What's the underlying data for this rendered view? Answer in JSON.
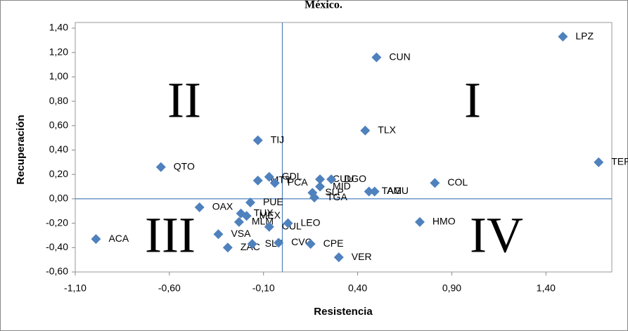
{
  "chart_data": {
    "type": "scatter",
    "title": "México.",
    "x_label": "Resistencia",
    "y_label": "Recuperación",
    "color": "#4f81bd",
    "xlim": [
      -1.1,
      1.75
    ],
    "ylim": [
      -0.6,
      1.4
    ],
    "xticks": [
      {
        "value": -1.1,
        "label": "-1,10"
      },
      {
        "value": -0.6,
        "label": "-0,60"
      },
      {
        "value": -0.1,
        "label": "-0,10"
      },
      {
        "value": 0.4,
        "label": "0,40"
      },
      {
        "value": 0.9,
        "label": "0,90"
      },
      {
        "value": 1.4,
        "label": "1,40"
      }
    ],
    "yticks": [
      {
        "value": 1.4,
        "label": "1,40"
      },
      {
        "value": 1.2,
        "label": "1,20"
      },
      {
        "value": 1.0,
        "label": "1,00"
      },
      {
        "value": 0.8,
        "label": "0,80"
      },
      {
        "value": 0.6,
        "label": "0,60"
      },
      {
        "value": 0.4,
        "label": "0,40"
      },
      {
        "value": 0.2,
        "label": "0,20"
      },
      {
        "value": 0,
        "label": "0,00"
      },
      {
        "value": -0.2,
        "label": "-0,20"
      },
      {
        "value": -0.4,
        "label": "-0,40"
      },
      {
        "value": -0.6,
        "label": "-0,60"
      }
    ],
    "labels": [
      "LPZ",
      "CUN",
      "TLX",
      "TIJ",
      "QTO",
      "TEP",
      "ACA",
      "OAX",
      "PUE",
      "TUX",
      "MEX",
      "MLM",
      "VSA",
      "ZAC",
      "SLT",
      "CVC",
      "CPE",
      "CUL",
      "LEO",
      "VER",
      "HMO",
      "COL",
      "TAM",
      "AGU",
      "CUU",
      "DGO",
      "MID",
      "SLP",
      "TGA",
      "MTY",
      "GDL",
      "PCA"
    ],
    "x": [
      1.49,
      0.5,
      0.44,
      -0.13,
      -0.645,
      1.68,
      -0.99,
      -0.44,
      -0.17,
      -0.22,
      -0.19,
      -0.23,
      -0.34,
      -0.29,
      -0.16,
      -0.02,
      0.15,
      -0.07,
      0.03,
      0.3,
      0.73,
      0.81,
      0.46,
      0.49,
      0.2,
      0.26,
      0.2,
      0.16,
      0.17,
      -0.13,
      -0.07,
      -0.04
    ],
    "y": [
      1.33,
      1.16,
      0.56,
      0.48,
      0.26,
      0.3,
      -0.33,
      -0.07,
      -0.03,
      -0.12,
      -0.14,
      -0.19,
      -0.29,
      -0.4,
      -0.37,
      -0.36,
      -0.37,
      -0.23,
      -0.2,
      -0.48,
      -0.19,
      0.13,
      0.06,
      0.06,
      0.16,
      0.16,
      0.1,
      0.05,
      0.01,
      0.15,
      0.18,
      0.13
    ],
    "annotations": [
      "I",
      "II",
      "III",
      "IV"
    ]
  }
}
